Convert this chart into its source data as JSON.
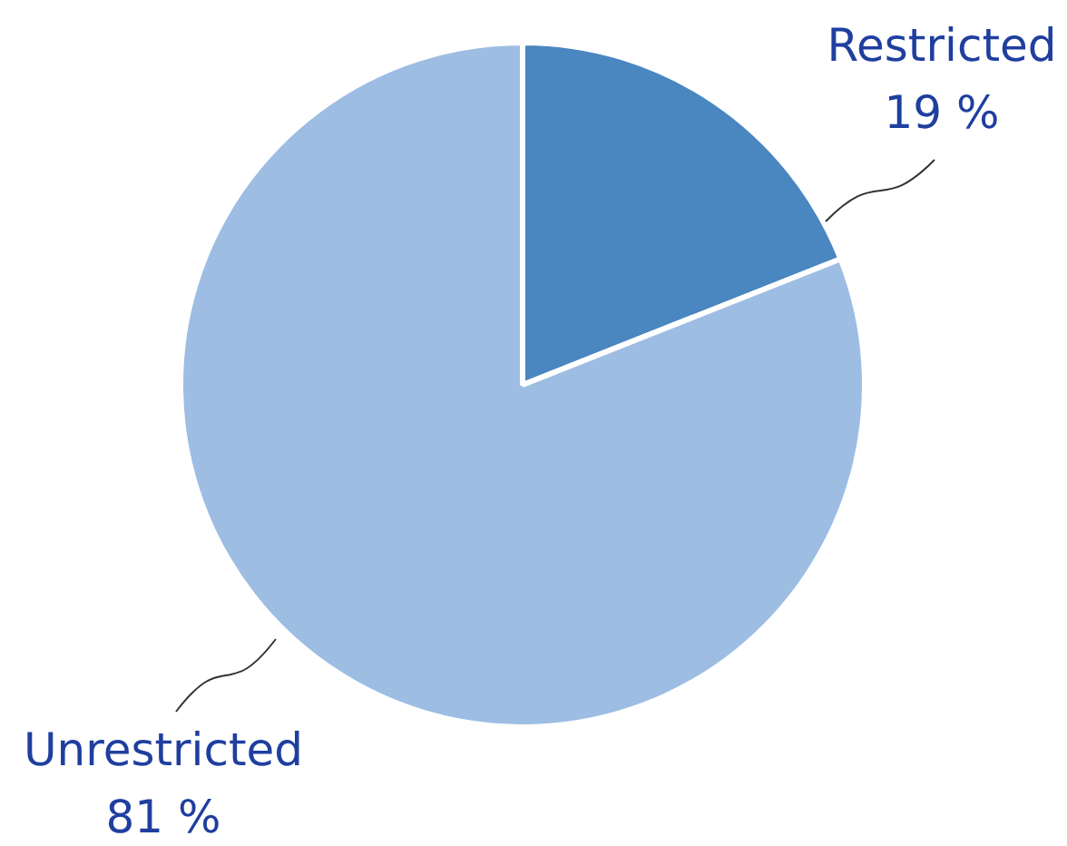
{
  "chart_data": {
    "type": "pie",
    "categories": [
      "Restricted",
      "Unrestricted"
    ],
    "values": [
      19,
      81
    ],
    "colors": [
      "#4a86c0",
      "#9dbde3"
    ],
    "value_labels": [
      "19 %",
      "81 %"
    ],
    "legend": false
  }
}
